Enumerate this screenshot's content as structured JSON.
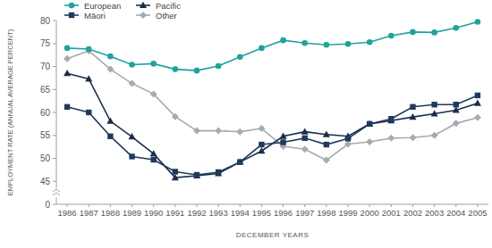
{
  "chart_data": {
    "type": "line",
    "xlabel": "DECEMBER YEARS",
    "ylabel": "EMPLOYMENT RATE (ANNUAL AVERAGE PERCENT)",
    "categories": [
      "1986",
      "1987",
      "1988",
      "1989",
      "1990",
      "1991",
      "1992",
      "1993",
      "1994",
      "1995",
      "1996",
      "1997",
      "1998",
      "1999",
      "2000",
      "2001",
      "2002",
      "2003",
      "2004",
      "2005"
    ],
    "series": [
      {
        "name": "European",
        "color": "#1fa39c",
        "marker": "circle",
        "values": [
          74,
          73.8,
          72.2,
          70.4,
          70.6,
          69.4,
          69.1,
          70.1,
          72.1,
          74,
          75.7,
          75.1,
          74.7,
          74.9,
          75.3,
          76.7,
          77.5,
          77.4,
          78.4,
          79.7
        ]
      },
      {
        "name": "Māori",
        "color": "#1e3a5c",
        "marker": "square",
        "values": [
          61.2,
          60,
          54.8,
          50.4,
          49.7,
          47.1,
          46.4,
          47,
          49.2,
          53,
          53.5,
          54.4,
          53,
          54.3,
          57.5,
          58.6,
          61.2,
          61.7,
          61.7,
          63.7
        ]
      },
      {
        "name": "Pacific",
        "color": "#1b2d4a",
        "marker": "triangle",
        "values": [
          68.5,
          67.3,
          58.1,
          54.7,
          51,
          45.8,
          46.2,
          46.7,
          49.2,
          51.6,
          54.8,
          55.8,
          55.2,
          54.8,
          57.5,
          58.2,
          59,
          59.7,
          60.5,
          62
        ]
      },
      {
        "name": "Other",
        "color": "#a3abb3",
        "marker": "diamond",
        "values": [
          71.7,
          73.4,
          69.4,
          66.3,
          64,
          59.1,
          56,
          56,
          55.8,
          56.5,
          52.6,
          52,
          49.6,
          53.1,
          53.6,
          54.4,
          54.5,
          55,
          57.6,
          58.9
        ]
      }
    ],
    "ylim": [
      0,
      80
    ],
    "yticks": [
      0,
      45,
      50,
      55,
      60,
      65,
      70,
      75,
      80
    ],
    "grid": false,
    "legend": "upper left"
  }
}
